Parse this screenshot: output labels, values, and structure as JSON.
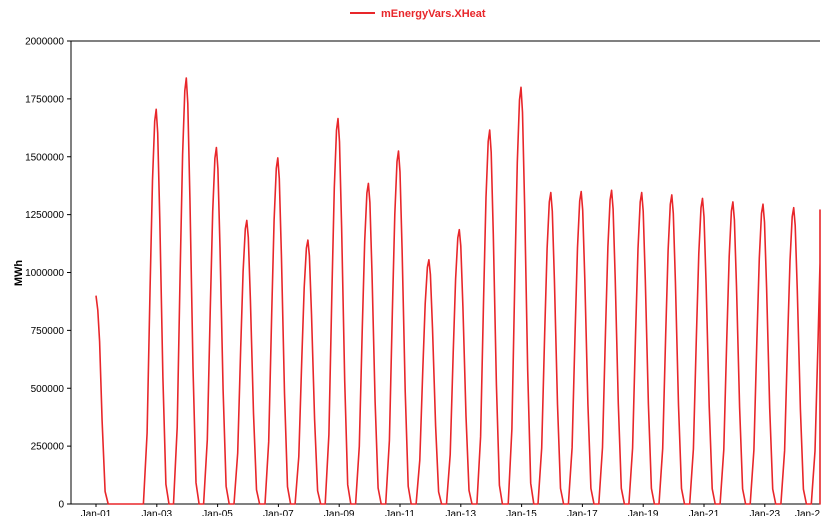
{
  "chart_data": {
    "type": "line",
    "title": "",
    "xlabel": "",
    "ylabel": "MWh",
    "ylim": [
      0,
      2000000
    ],
    "xlim": [
      0,
      24.67
    ],
    "x_unit": "years since Jan-01",
    "yticks": [
      0,
      250000,
      500000,
      750000,
      1000000,
      1250000,
      1500000,
      1750000,
      2000000
    ],
    "ytick_labels": [
      "0",
      "250000",
      "500000",
      "750000",
      "1000000",
      "1250000",
      "1500000",
      "1750000",
      "2000000"
    ],
    "xticks": [
      0,
      2,
      4,
      6,
      8,
      10,
      12,
      14,
      16,
      18,
      20,
      22,
      24
    ],
    "xtick_labels": [
      "Jan-01",
      "Jan-03",
      "Jan-05",
      "Jan-07",
      "Jan-09",
      "Jan-11",
      "Jan-13",
      "Jan-15",
      "Jan-17",
      "Jan-19",
      "Jan-21",
      "Jan-23",
      "Jan-2"
    ],
    "grid": false,
    "legend": "top-center",
    "series": [
      {
        "name": "mEnergyVars.XHeat",
        "color": "#e8262a",
        "peaks": [
          {
            "x": 0.0,
            "y": 900000
          },
          {
            "x": 1.98,
            "y": 1705000
          },
          {
            "x": 2.97,
            "y": 1840000
          },
          {
            "x": 3.96,
            "y": 1540000
          },
          {
            "x": 4.96,
            "y": 1225000
          },
          {
            "x": 5.98,
            "y": 1495000
          },
          {
            "x": 6.97,
            "y": 1140000
          },
          {
            "x": 7.96,
            "y": 1665000
          },
          {
            "x": 8.96,
            "y": 1385000
          },
          {
            "x": 9.95,
            "y": 1525000
          },
          {
            "x": 10.95,
            "y": 1055000
          },
          {
            "x": 11.95,
            "y": 1185000
          },
          {
            "x": 12.95,
            "y": 1615000
          },
          {
            "x": 13.98,
            "y": 1800000
          },
          {
            "x": 14.96,
            "y": 1345000
          },
          {
            "x": 15.96,
            "y": 1350000
          },
          {
            "x": 16.96,
            "y": 1355000
          },
          {
            "x": 17.95,
            "y": 1345000
          },
          {
            "x": 18.94,
            "y": 1335000
          },
          {
            "x": 19.95,
            "y": 1320000
          },
          {
            "x": 20.95,
            "y": 1305000
          },
          {
            "x": 21.94,
            "y": 1295000
          },
          {
            "x": 22.95,
            "y": 1280000
          },
          {
            "x": 23.95,
            "y": 1270000
          }
        ]
      }
    ]
  }
}
